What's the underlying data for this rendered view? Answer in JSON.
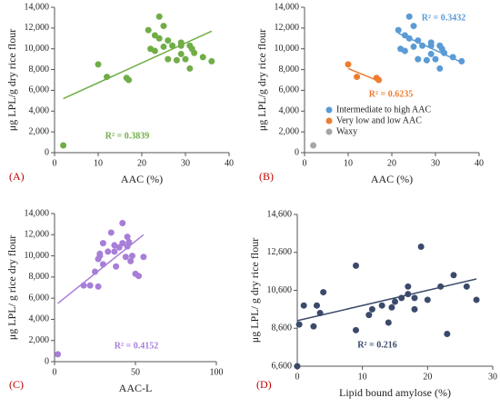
{
  "chart_data": [
    {
      "type": "scatter",
      "panel_label": "(A)",
      "x_label": "AAC (%)",
      "y_label": "μg LPL/g dry rice flour",
      "xlim": [
        0,
        40
      ],
      "xticks": [
        0,
        10,
        20,
        30,
        40
      ],
      "ylim": [
        0,
        14000
      ],
      "yticks": [
        0,
        {
          "value": 2000,
          "label": "2,000"
        },
        {
          "value": 4000,
          "label": "4,000"
        },
        {
          "value": 6000,
          "label": "6,000"
        },
        {
          "value": 8000,
          "label": "8,000"
        },
        {
          "value": 10000,
          "label": "10,000"
        },
        {
          "value": 12000,
          "label": "12,000"
        },
        {
          "value": 14000,
          "label": "14,000"
        }
      ],
      "series": [
        {
          "color": "#70ad47",
          "x": [
            2,
            10,
            12,
            16.5,
            17,
            21.5,
            22,
            23,
            23,
            24,
            24,
            25,
            25,
            26,
            26,
            27,
            28,
            29,
            29,
            29,
            30,
            31,
            31,
            31.5,
            32,
            34,
            36
          ],
          "values": [
            700,
            8500,
            7300,
            7200,
            7000,
            11800,
            10000,
            9800,
            11300,
            13100,
            11000,
            12200,
            10200,
            10800,
            9000,
            10300,
            8900,
            10600,
            10300,
            9500,
            9000,
            10300,
            8100,
            10000,
            9600,
            9200,
            8800
          ]
        }
      ],
      "trendlines": [
        {
          "color": "#70ad47",
          "x": [
            2,
            36
          ],
          "y": [
            5200,
            11700
          ],
          "label": "R² = 0.3839"
        }
      ]
    },
    {
      "type": "scatter",
      "panel_label": "(B)",
      "x_label": "AAC (%)",
      "y_label": "μg LPL/g dry rice flour",
      "xlim": [
        0,
        40
      ],
      "xticks": [
        0,
        10,
        20,
        30,
        40
      ],
      "ylim": [
        0,
        14000
      ],
      "yticks": [
        0,
        {
          "value": 2000,
          "label": "2,000"
        },
        {
          "value": 4000,
          "label": "4,000"
        },
        {
          "value": 6000,
          "label": "6,000"
        },
        {
          "value": 8000,
          "label": "8,000"
        },
        {
          "value": 10000,
          "label": "10,000"
        },
        {
          "value": 12000,
          "label": "12,000"
        },
        {
          "value": 14000,
          "label": "14,000"
        }
      ],
      "series": [
        {
          "name": "Intermediate to high AAC",
          "color": "#5b9bd5",
          "x": [
            21.5,
            22,
            23,
            23,
            24,
            24,
            25,
            25,
            26,
            26,
            27,
            28,
            29,
            29,
            29,
            30,
            31,
            31,
            31.5,
            32,
            34,
            36
          ],
          "values": [
            11800,
            10000,
            9800,
            11300,
            13100,
            11000,
            12200,
            10200,
            10800,
            9000,
            10300,
            8900,
            10600,
            10300,
            9500,
            9000,
            10300,
            8100,
            10000,
            9600,
            9200,
            8800
          ]
        },
        {
          "name": "Very low and low AAC",
          "color": "#ed7d31",
          "x": [
            10,
            12,
            16.5,
            17
          ],
          "values": [
            8500,
            7300,
            7200,
            7000
          ]
        },
        {
          "name": "Waxy",
          "color": "#a5a5a5",
          "x": [
            2
          ],
          "values": [
            700
          ]
        }
      ],
      "trendlines": [
        {
          "color": "#5b9bd5",
          "x": [
            21.5,
            36
          ],
          "y": [
            11500,
            8700
          ],
          "label": "R² = 0.3432"
        },
        {
          "color": "#ed7d31",
          "x": [
            10,
            17
          ],
          "y": [
            8100,
            6900
          ],
          "label": "R² = 0.6235"
        }
      ]
    },
    {
      "type": "scatter",
      "panel_label": "(C)",
      "x_label": "AAC-L",
      "y_label": "μg LPL/ g rice dry flour",
      "xlim": [
        0,
        100
      ],
      "xticks": [
        0,
        50,
        100
      ],
      "ylim": [
        0,
        14000
      ],
      "yticks": [
        0,
        {
          "value": 2000,
          "label": "2,000"
        },
        {
          "value": 4000,
          "label": "4,000"
        },
        {
          "value": 6000,
          "label": "6,000"
        },
        {
          "value": 8000,
          "label": "8,000"
        },
        {
          "value": 10000,
          "label": "10,000"
        },
        {
          "value": 12000,
          "label": "12,000"
        },
        {
          "value": 14000,
          "label": "14,000"
        }
      ],
      "series": [
        {
          "color": "#a77ed8",
          "x": [
            2,
            18,
            22,
            25,
            27,
            27,
            28,
            28,
            30,
            30,
            33,
            35,
            37,
            37,
            38,
            40,
            42,
            42,
            44,
            45,
            45,
            46,
            47,
            48,
            50,
            52,
            55
          ],
          "values": [
            700,
            7200,
            7200,
            8500,
            7100,
            9700,
            10000,
            10200,
            11200,
            9200,
            10400,
            12200,
            11000,
            10400,
            9000,
            10800,
            13100,
            11200,
            9900,
            11800,
            10900,
            11300,
            9500,
            10000,
            8300,
            8100,
            9900
          ]
        }
      ],
      "trendlines": [
        {
          "color": "#a77ed8",
          "x": [
            2,
            55
          ],
          "y": [
            5500,
            12000
          ],
          "label": "R² = 0.4152"
        }
      ]
    },
    {
      "type": "scatter",
      "panel_label": "(D)",
      "x_label": "Lipid bound amylose (%)",
      "y_label": "μg LPL/ g dry rice flour",
      "xlim": [
        0,
        30
      ],
      "xticks": [
        0,
        10,
        20,
        30
      ],
      "ylim": [
        6600,
        14600
      ],
      "yticks": [
        {
          "value": 6600,
          "label": "6,600"
        },
        {
          "value": 8600,
          "label": "8,600"
        },
        {
          "value": 10600,
          "label": "10,600"
        },
        {
          "value": 12600,
          "label": "12,600"
        },
        {
          "value": 14600,
          "label": "14,600"
        }
      ],
      "series": [
        {
          "color": "#3b4a6b",
          "x": [
            0,
            0.3,
            1,
            2.5,
            3,
            3.5,
            4,
            9,
            9,
            11,
            11.5,
            13,
            14,
            14.5,
            15,
            16,
            17,
            17,
            18,
            18,
            19,
            20,
            22,
            23,
            24,
            26,
            27.5
          ],
          "values": [
            6600,
            8800,
            9800,
            8700,
            9800,
            9400,
            10500,
            8500,
            11900,
            9300,
            9600,
            9800,
            8900,
            9700,
            10000,
            10200,
            10400,
            10800,
            9600,
            10200,
            12900,
            10100,
            10800,
            8300,
            11400,
            10800,
            10100
          ]
        }
      ],
      "trendlines": [
        {
          "color": "#3b4a6b",
          "x": [
            0,
            27.5
          ],
          "y": [
            9000,
            11200
          ],
          "label": "R² = 0.216"
        }
      ]
    }
  ]
}
